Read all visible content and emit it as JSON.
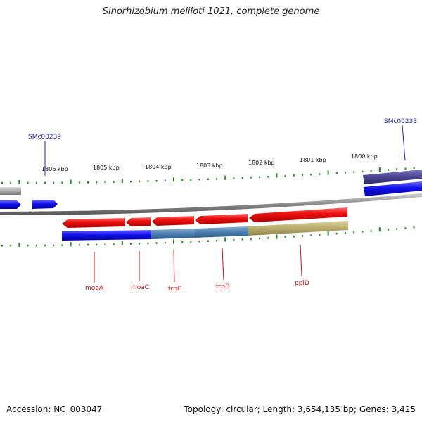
{
  "title": "Sinorhizobium meliloti 1021, complete genome",
  "footer": {
    "accession": "Accession: NC_003047",
    "summary": "Topology: circular; Length: 3,654,135 bp; Genes: 3,425"
  },
  "colors": {
    "gene_red": "#ee1111",
    "cds_blue": "#1111ee",
    "steel": "#4a7fb0",
    "olive": "#b8ad6e",
    "purple": "#4a4590",
    "gray": "#aaaaaa",
    "tick": "#228822"
  },
  "scale_labels": [
    "1806 kbp",
    "1805 kbp",
    "1804 kbp",
    "1803 kbp",
    "1802 kbp",
    "1801 kbp",
    "1800 kbp"
  ],
  "features": {
    "top_labels": [
      "SMc00239",
      "SMc00233"
    ],
    "gene_labels": [
      "moeA",
      "moaC",
      "trpC",
      "trpD",
      "ppiD"
    ]
  }
}
